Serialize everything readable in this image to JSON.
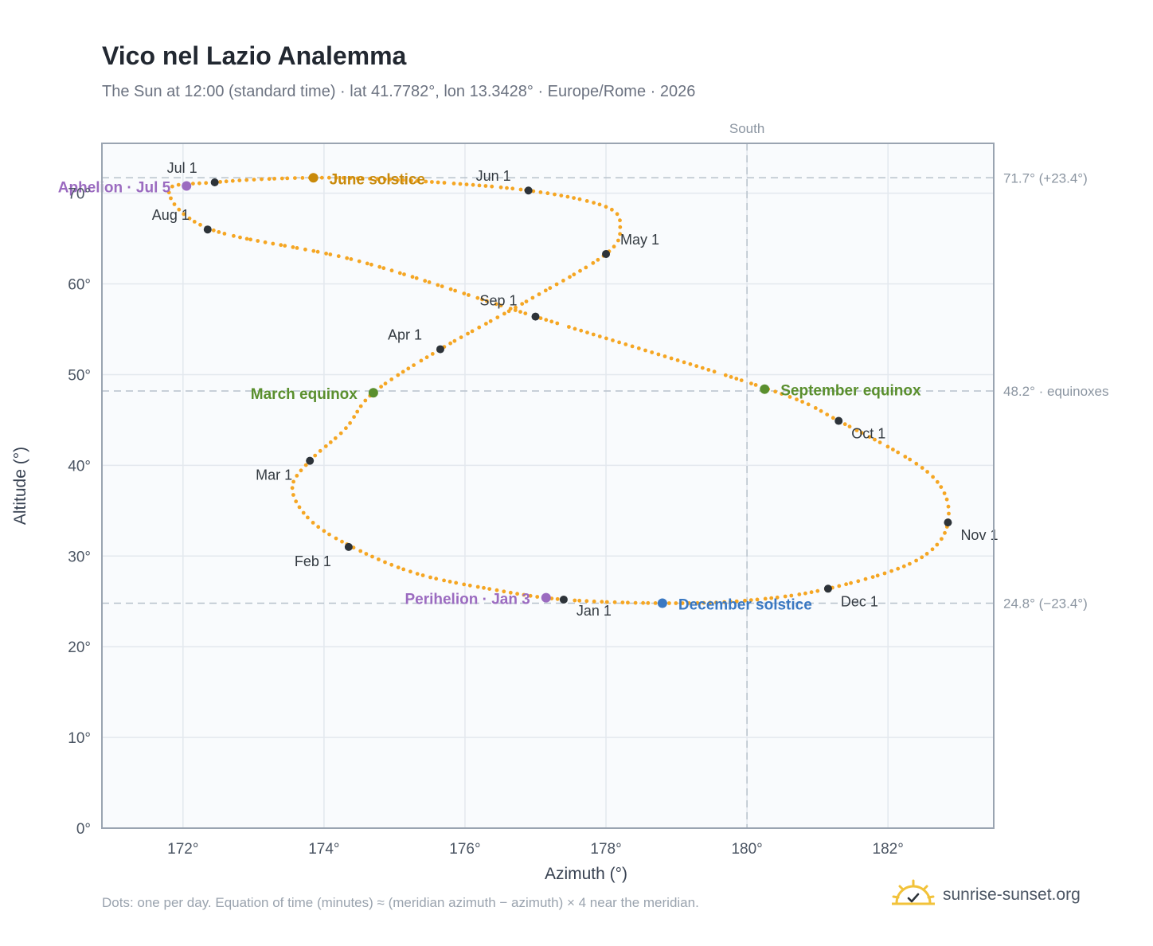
{
  "header": {
    "title": "Vico nel Lazio Analemma",
    "subtitle": "The Sun at 12:00 (standard time) · lat 41.7782°, lon 13.3428° · Europe/Rome · 2026"
  },
  "footer": {
    "note": "Dots: one per day. Equation of time (minutes) ≈ (meridian azimuth − azimuth) × 4 near the meridian.",
    "brand": "sunrise-sunset.org",
    "brand_icon": "sun-check-icon"
  },
  "colors": {
    "curve": "#f5a623",
    "month_dot": "#2d3339",
    "june": "#c98a0b",
    "equinox": "#5a8f2e",
    "december": "#3a78c2",
    "apsis": "#9b6bc0",
    "grid": "#e3e8ee",
    "ref_line": "#b8c2cc",
    "plot_bg": "#f9fbfd",
    "frame": "#9aa4b1"
  },
  "chart_data": {
    "type": "scatter",
    "xlabel": "Azimuth (°)",
    "ylabel": "Altitude (°)",
    "xlim": [
      170.85,
      183.5
    ],
    "ylim": [
      0,
      75.5
    ],
    "x_ticks": [
      172,
      174,
      176,
      178,
      180,
      182
    ],
    "x_tick_labels": [
      "172°",
      "174°",
      "176°",
      "178°",
      "180°",
      "182°"
    ],
    "y_ticks": [
      0,
      10,
      20,
      30,
      40,
      50,
      60,
      70
    ],
    "y_tick_labels": [
      "0°",
      "10°",
      "20°",
      "30°",
      "40°",
      "50°",
      "60°",
      "70°"
    ],
    "grid": true,
    "meridian": {
      "azimuth": 180,
      "label": "South"
    },
    "reference_lines": [
      {
        "altitude": 71.7,
        "label": "71.7° (+23.4°)"
      },
      {
        "altitude": 48.2,
        "label": "48.2° · equinoxes"
      },
      {
        "altitude": 24.8,
        "label": "24.8° (−23.4°)"
      }
    ],
    "curve_path": [
      [
        177.4,
        25.2
      ],
      [
        176.4,
        26.3
      ],
      [
        175.3,
        28.1
      ],
      [
        174.4,
        31.0
      ],
      [
        173.8,
        34.0
      ],
      [
        173.55,
        37.5
      ],
      [
        173.8,
        40.5
      ],
      [
        174.3,
        44.0
      ],
      [
        174.7,
        48.0
      ],
      [
        175.65,
        52.8
      ],
      [
        176.9,
        58.2
      ],
      [
        178.0,
        63.3
      ],
      [
        178.2,
        66.2
      ],
      [
        178.0,
        68.5
      ],
      [
        176.9,
        70.3
      ],
      [
        175.2,
        71.4
      ],
      [
        173.8,
        71.7
      ],
      [
        172.45,
        71.2
      ],
      [
        171.8,
        70.3
      ],
      [
        172.4,
        66.0
      ],
      [
        174.5,
        62.5
      ],
      [
        177.0,
        56.4
      ],
      [
        180.3,
        48.4
      ],
      [
        181.3,
        44.9
      ],
      [
        182.6,
        39.0
      ],
      [
        182.85,
        33.7
      ],
      [
        182.4,
        29.5
      ],
      [
        181.15,
        26.4
      ],
      [
        180.0,
        25.1
      ],
      [
        178.8,
        24.8
      ],
      [
        177.4,
        25.2
      ]
    ],
    "month_markers": [
      {
        "label": "Jan 1",
        "x": 177.4,
        "y": 25.2,
        "dx": 16,
        "dy": 20
      },
      {
        "label": "Feb 1",
        "x": 174.35,
        "y": 31.0,
        "dx": -68,
        "dy": 24
      },
      {
        "label": "Mar 1",
        "x": 173.8,
        "y": 40.5,
        "dx": -68,
        "dy": 24
      },
      {
        "label": "Apr 1",
        "x": 175.65,
        "y": 52.8,
        "dx": -66,
        "dy": -12
      },
      {
        "label": "May 1",
        "x": 178.0,
        "y": 63.3,
        "dx": 18,
        "dy": -12
      },
      {
        "label": "Jun 1",
        "x": 176.9,
        "y": 70.3,
        "dx": -66,
        "dy": -12
      },
      {
        "label": "Jul 1",
        "x": 172.45,
        "y": 71.2,
        "dx": -60,
        "dy": -12
      },
      {
        "label": "Aug 1",
        "x": 172.35,
        "y": 66.0,
        "dx": -70,
        "dy": -12
      },
      {
        "label": "Sep 1",
        "x": 177.0,
        "y": 56.4,
        "dx": -70,
        "dy": -14
      },
      {
        "label": "Oct 1",
        "x": 181.3,
        "y": 44.9,
        "dx": 16,
        "dy": 22
      },
      {
        "label": "Nov 1",
        "x": 182.85,
        "y": 33.7,
        "dx": 16,
        "dy": 22
      },
      {
        "label": "Dec 1",
        "x": 181.15,
        "y": 26.4,
        "dx": 16,
        "dy": 22
      }
    ],
    "events": [
      {
        "label": "June solstice",
        "x": 173.85,
        "y": 71.7,
        "color_key": "june",
        "anchor": "start",
        "dx": 20,
        "dy": 8
      },
      {
        "label": "March equinox",
        "x": 174.7,
        "y": 48.0,
        "color_key": "equinox",
        "anchor": "end",
        "dx": -20,
        "dy": 8
      },
      {
        "label": "September equinox",
        "x": 180.25,
        "y": 48.4,
        "color_key": "equinox",
        "anchor": "start",
        "dx": 20,
        "dy": 8
      },
      {
        "label": "December solstice",
        "x": 178.8,
        "y": 24.8,
        "color_key": "december",
        "anchor": "start",
        "dx": 20,
        "dy": 8
      },
      {
        "label": "Aphelion · Jul 5",
        "x": 172.05,
        "y": 70.8,
        "color_key": "apsis",
        "anchor": "end",
        "dx": -20,
        "dy": 8
      },
      {
        "label": "Perihelion · Jan 3",
        "x": 177.15,
        "y": 25.4,
        "color_key": "apsis",
        "anchor": "end",
        "dx": -20,
        "dy": 8
      }
    ]
  }
}
